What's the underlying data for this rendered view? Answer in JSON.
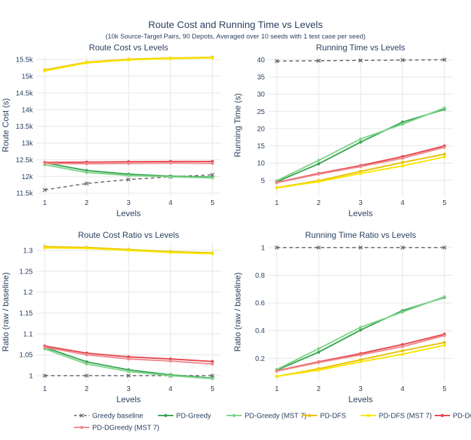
{
  "figure": {
    "title": "Route Cost and Running Time vs Levels",
    "subtitle": "(10k Source-Target Pairs, 90 Depots, Averaged over 10 seeds with 1 test case per seed)"
  },
  "legend": {
    "placement": "bottom",
    "entries": [
      {
        "name": "Greedy baseline",
        "color": "#666666",
        "dash": "dash"
      },
      {
        "name": "PD-Greedy",
        "color": "#3aa655",
        "dash": "solid"
      },
      {
        "name": "PD-Greedy (MST 7)",
        "color": "#7fd68a",
        "dash": "solid"
      },
      {
        "name": "PD-DFS",
        "color": "#e8c200",
        "dash": "solid"
      },
      {
        "name": "PD-DFS (MST 7)",
        "color": "#fbe600",
        "dash": "solid"
      },
      {
        "name": "PD-DGreedy",
        "color": "#e5484d",
        "dash": "solid"
      },
      {
        "name": "PD-DGreedy (MST 7)",
        "color": "#f08a8f",
        "dash": "solid"
      }
    ]
  },
  "chart_data": [
    {
      "type": "line",
      "title": "Route Cost vs Levels",
      "xlabel": "Levels",
      "ylabel": "Route Cost (s)",
      "x": [
        1,
        2,
        3,
        4,
        5
      ],
      "xticks": [
        "1",
        "2",
        "3",
        "4",
        "5"
      ],
      "ylim": [
        11420,
        15650
      ],
      "yticks": [
        11500,
        12000,
        12500,
        13000,
        13500,
        14000,
        14500,
        15000,
        15500
      ],
      "yticklabels": [
        "11.5k",
        "12k",
        "12.5k",
        "13k",
        "13.5k",
        "14k",
        "14.5k",
        "15k",
        "15.5k"
      ],
      "grid": true,
      "series": [
        {
          "name": "Greedy baseline",
          "values": [
            11600,
            11790,
            11910,
            11990,
            12050
          ]
        },
        {
          "name": "PD-Greedy",
          "values": [
            12410,
            12180,
            12070,
            12010,
            11980
          ]
        },
        {
          "name": "PD-Greedy (MST 7)",
          "values": [
            12350,
            12120,
            12030,
            11990,
            11960
          ]
        },
        {
          "name": "PD-DFS",
          "values": [
            15190,
            15420,
            15510,
            15545,
            15570
          ]
        },
        {
          "name": "PD-DFS (MST 7)",
          "values": [
            15160,
            15400,
            15490,
            15530,
            15550
          ]
        },
        {
          "name": "PD-DGreedy",
          "values": [
            12420,
            12430,
            12440,
            12450,
            12450
          ]
        },
        {
          "name": "PD-DGreedy (MST 7)",
          "values": [
            12390,
            12380,
            12390,
            12400,
            12390
          ]
        }
      ]
    },
    {
      "type": "line",
      "title": "Running Time vs Levels",
      "xlabel": "Levels",
      "ylabel": "Running Time (s)",
      "x": [
        1,
        2,
        3,
        4,
        5
      ],
      "xticks": [
        "1",
        "2",
        "3",
        "4",
        "5"
      ],
      "ylim": [
        0.5,
        41.5
      ],
      "yticks": [
        5,
        10,
        15,
        20,
        25,
        30,
        35,
        40
      ],
      "yticklabels": [
        "5",
        "10",
        "15",
        "20",
        "25",
        "30",
        "35",
        "40"
      ],
      "grid": true,
      "series": [
        {
          "name": "Greedy baseline",
          "values": [
            39.6,
            39.7,
            39.8,
            39.9,
            40.0
          ]
        },
        {
          "name": "PD-Greedy",
          "values": [
            4.6,
            9.8,
            16.1,
            21.9,
            25.6
          ]
        },
        {
          "name": "PD-Greedy (MST 7)",
          "values": [
            4.9,
            10.8,
            17.0,
            21.3,
            26.0
          ]
        },
        {
          "name": "PD-DFS",
          "values": [
            2.9,
            4.9,
            7.6,
            10.2,
            12.6
          ]
        },
        {
          "name": "PD-DFS (MST 7)",
          "values": [
            2.8,
            4.6,
            7.0,
            9.2,
            11.8
          ]
        },
        {
          "name": "PD-DGreedy",
          "values": [
            4.4,
            7.0,
            9.3,
            11.9,
            15.0
          ]
        },
        {
          "name": "PD-DGreedy (MST 7)",
          "values": [
            4.3,
            6.8,
            9.0,
            11.4,
            14.6
          ]
        }
      ]
    },
    {
      "type": "line",
      "title": "Route Cost Ratio vs Levels",
      "xlabel": "Levels",
      "ylabel": "Ratio (raw / baseline)",
      "x": [
        1,
        2,
        3,
        4,
        5
      ],
      "xticks": [
        "1",
        "2",
        "3",
        "4",
        "5"
      ],
      "ylim": [
        0.985,
        1.32
      ],
      "yticks": [
        1.0,
        1.05,
        1.1,
        1.15,
        1.2,
        1.25,
        1.3
      ],
      "yticklabels": [
        "1",
        "1.05",
        "1.1",
        "1.15",
        "1.2",
        "1.25",
        "1.3"
      ],
      "grid": true,
      "series": [
        {
          "name": "Greedy baseline",
          "values": [
            1.0,
            1.0,
            1.0,
            1.0,
            1.0
          ]
        },
        {
          "name": "PD-Greedy",
          "values": [
            1.068,
            1.033,
            1.014,
            1.002,
            0.994
          ]
        },
        {
          "name": "PD-Greedy (MST 7)",
          "values": [
            1.064,
            1.028,
            1.01,
            1.0,
            0.993
          ]
        },
        {
          "name": "PD-DFS",
          "values": [
            1.309,
            1.307,
            1.302,
            1.297,
            1.294
          ]
        },
        {
          "name": "PD-DFS (MST 7)",
          "values": [
            1.306,
            1.305,
            1.3,
            1.295,
            1.292
          ]
        },
        {
          "name": "PD-DGreedy",
          "values": [
            1.071,
            1.054,
            1.045,
            1.04,
            1.034
          ]
        },
        {
          "name": "PD-DGreedy (MST 7)",
          "values": [
            1.068,
            1.05,
            1.04,
            1.035,
            1.028
          ]
        }
      ]
    },
    {
      "type": "line",
      "title": "Running Time Ratio vs Levels",
      "xlabel": "Levels",
      "ylabel": "Ratio (raw / baseline)",
      "x": [
        1,
        2,
        3,
        4,
        5
      ],
      "xticks": [
        "1",
        "2",
        "3",
        "4",
        "5"
      ],
      "ylim": [
        0.03,
        1.04
      ],
      "yticks": [
        0.2,
        0.4,
        0.6,
        0.8,
        1.0
      ],
      "yticklabels": [
        "0.2",
        "0.4",
        "0.6",
        "0.8",
        "1"
      ],
      "grid": true,
      "series": [
        {
          "name": "Greedy baseline",
          "values": [
            1.0,
            1.0,
            1.0,
            1.0,
            1.0
          ]
        },
        {
          "name": "PD-Greedy",
          "values": [
            0.115,
            0.245,
            0.405,
            0.545,
            0.64
          ]
        },
        {
          "name": "PD-Greedy (MST 7)",
          "values": [
            0.12,
            0.27,
            0.425,
            0.535,
            0.645
          ]
        },
        {
          "name": "PD-DFS",
          "values": [
            0.07,
            0.125,
            0.19,
            0.255,
            0.315
          ]
        },
        {
          "name": "PD-DFS (MST 7)",
          "values": [
            0.07,
            0.115,
            0.175,
            0.23,
            0.295
          ]
        },
        {
          "name": "PD-DGreedy",
          "values": [
            0.11,
            0.175,
            0.235,
            0.3,
            0.375
          ]
        },
        {
          "name": "PD-DGreedy (MST 7)",
          "values": [
            0.108,
            0.17,
            0.225,
            0.285,
            0.365
          ]
        }
      ]
    }
  ]
}
